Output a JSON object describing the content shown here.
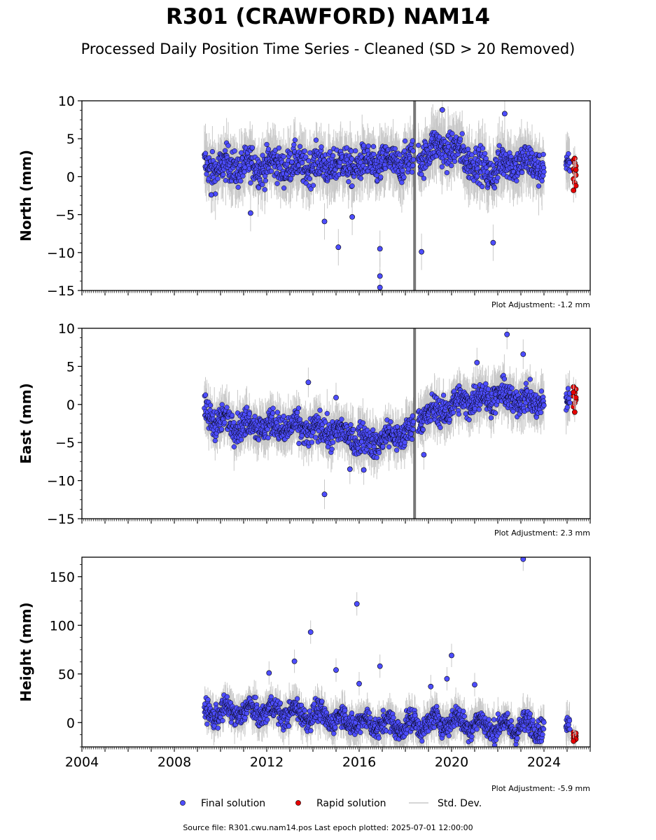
{
  "title": "R301 (CRAWFORD) NAM14",
  "subtitle": "Processed Daily Position Time Series - Cleaned (SD > 20 Removed)",
  "source": "Source file: R301.cwu.nam14.pos  Last epoch plotted: 2025-07-01 12:00:00",
  "legend": {
    "final": "Final solution",
    "rapid": "Rapid solution",
    "std": "Std. Dev."
  },
  "colors": {
    "final": "#4d4dff",
    "rapid": "#e60000",
    "std": "#c8c8c8",
    "edge": "#000000"
  },
  "chart_data": [
    {
      "type": "scatter",
      "ylabel": "North (mm)",
      "adjustment": "Plot Adjustment: -1.2 mm",
      "xlim": [
        2004,
        2026
      ],
      "ylim": [
        -15,
        10
      ],
      "yticks": [
        10,
        5,
        0,
        -5,
        -10,
        -15
      ],
      "data_span": [
        2009.3,
        2024.0
      ],
      "rapid_span": [
        2025.0,
        2025.5
      ],
      "trend": [
        [
          2009.3,
          1.2
        ],
        [
          2012,
          1.5
        ],
        [
          2016,
          1.5
        ],
        [
          2018.2,
          2.0
        ],
        [
          2019.5,
          4.0
        ],
        [
          2020.5,
          3.0
        ],
        [
          2021.5,
          0.5
        ],
        [
          2022.5,
          2.0
        ],
        [
          2024.0,
          1.5
        ]
      ],
      "noise": 1.6,
      "outliers": [
        [
          2016.9,
          -14.6
        ],
        [
          2016.9,
          -13.1
        ],
        [
          2016.9,
          -9.5
        ],
        [
          2015.1,
          -9.3
        ],
        [
          2018.7,
          -9.9
        ],
        [
          2021.8,
          -8.7
        ],
        [
          2019.6,
          8.8
        ],
        [
          2022.3,
          8.3
        ],
        [
          2009.6,
          -2.4
        ],
        [
          2014.5,
          -5.9
        ],
        [
          2011.3,
          -4.8
        ],
        [
          2015.7,
          -5.3
        ]
      ],
      "rapid_values": [
        2.2,
        1.8,
        1.4,
        1.0,
        0.6,
        0.2,
        -0.3,
        -0.8,
        -1.2,
        -1.8,
        2.4,
        0.9
      ]
    },
    {
      "type": "scatter",
      "ylabel": "East (mm)",
      "adjustment": "Plot Adjustment: 2.3 mm",
      "xlim": [
        2004,
        2026
      ],
      "ylim": [
        -15,
        10
      ],
      "yticks": [
        10,
        5,
        0,
        -5,
        -10,
        -15
      ],
      "data_span": [
        2009.3,
        2024.0
      ],
      "rapid_span": [
        2025.0,
        2025.5
      ],
      "trend": [
        [
          2009.3,
          -1.5
        ],
        [
          2010.5,
          -2.5
        ],
        [
          2013,
          -3.0
        ],
        [
          2015,
          -3.6
        ],
        [
          2016.5,
          -5.0
        ],
        [
          2018.3,
          -3.5
        ],
        [
          2018.5,
          -1.5
        ],
        [
          2019.5,
          -1.0
        ],
        [
          2020.5,
          0.5
        ],
        [
          2022,
          1.2
        ],
        [
          2023.5,
          0.3
        ],
        [
          2024.0,
          0.5
        ]
      ],
      "noise": 1.3,
      "outliers": [
        [
          2014.5,
          -11.8
        ],
        [
          2013.8,
          2.9
        ],
        [
          2015.6,
          -8.5
        ],
        [
          2016.2,
          -8.6
        ],
        [
          2022.4,
          9.2
        ],
        [
          2023.1,
          6.6
        ],
        [
          2018.8,
          -6.6
        ],
        [
          2021.1,
          5.5
        ],
        [
          2015.0,
          0.9
        ]
      ],
      "rapid_values": [
        -0.3,
        0.2,
        0.6,
        1.1,
        1.5,
        2.0,
        2.3,
        -1.0,
        0.9,
        1.6
      ]
    },
    {
      "type": "scatter",
      "ylabel": "Height (mm)",
      "adjustment": "Plot Adjustment: -5.9 mm",
      "xlim": [
        2004,
        2026
      ],
      "ylim": [
        -25,
        170
      ],
      "yticks": [
        150,
        100,
        50,
        0
      ],
      "xticks": [
        2004,
        2008,
        2012,
        2016,
        2020,
        2024
      ],
      "data_span": [
        2009.3,
        2024.0
      ],
      "rapid_span": [
        2025.0,
        2025.5
      ],
      "trend": [
        [
          2009.3,
          10
        ],
        [
          2012,
          12
        ],
        [
          2014,
          8
        ],
        [
          2016,
          0
        ],
        [
          2018,
          -3
        ],
        [
          2020,
          2
        ],
        [
          2022,
          -5
        ],
        [
          2024.0,
          -3
        ]
      ],
      "noise": 8,
      "outliers": [
        [
          2015.9,
          122
        ],
        [
          2023.1,
          168
        ],
        [
          2013.9,
          93
        ],
        [
          2020.0,
          69
        ],
        [
          2019.8,
          45
        ],
        [
          2016.9,
          58
        ],
        [
          2015.0,
          54
        ],
        [
          2013.2,
          63
        ],
        [
          2012.1,
          51
        ],
        [
          2016.0,
          40
        ],
        [
          2021.0,
          39
        ],
        [
          2019.1,
          37
        ]
      ],
      "rapid_values": [
        -10,
        -12,
        -14,
        -16,
        -18,
        -11,
        -13,
        -15,
        -17,
        -19
      ]
    }
  ]
}
